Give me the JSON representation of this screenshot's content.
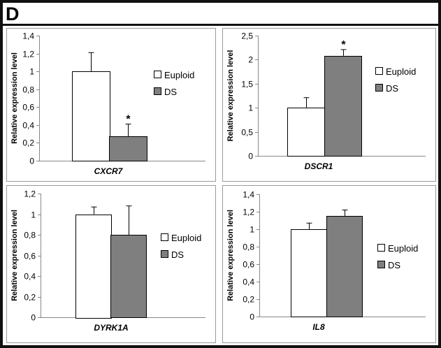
{
  "figure": {
    "panel_letter": "D"
  },
  "colors": {
    "euploid": "#ffffff",
    "ds": "#7f7f7f",
    "frame": "#111111",
    "panel_border": "#9a9a9a"
  },
  "legend": {
    "placement": "right",
    "items": [
      "Euploid",
      "DS"
    ]
  },
  "chart_data": [
    {
      "type": "bar",
      "categories": [
        "CXCR7"
      ],
      "ylabel": "Relative expression level",
      "ylim": [
        0,
        1.4
      ],
      "yticks": [
        "0",
        "0,2",
        "0,4",
        "0,6",
        "0,8",
        "1",
        "1,2",
        "1,4"
      ],
      "series": [
        {
          "name": "Euploid",
          "values": [
            1.0
          ],
          "error": [
            0.21
          ],
          "significant": [
            false
          ]
        },
        {
          "name": "DS",
          "values": [
            0.27
          ],
          "error": [
            0.14
          ],
          "significant": [
            true
          ]
        }
      ],
      "annotation": "*",
      "grid": false
    },
    {
      "type": "bar",
      "categories": [
        "DSCR1"
      ],
      "ylabel": "Relative expression level",
      "ylim": [
        0,
        2.5
      ],
      "yticks": [
        "0",
        "0,5",
        "1",
        "1,5",
        "2",
        "2,5"
      ],
      "series": [
        {
          "name": "Euploid",
          "values": [
            1.0
          ],
          "error": [
            0.21
          ],
          "significant": [
            false
          ]
        },
        {
          "name": "DS",
          "values": [
            2.08
          ],
          "error": [
            0.13
          ],
          "significant": [
            true
          ]
        }
      ],
      "annotation": "*",
      "grid": false
    },
    {
      "type": "bar",
      "categories": [
        "DYRK1A"
      ],
      "ylabel": "Relative expression level",
      "ylim": [
        0,
        1.2
      ],
      "yticks": [
        "0",
        "0,2",
        "0,4",
        "0,6",
        "0,8",
        "1",
        "1,2"
      ],
      "series": [
        {
          "name": "Euploid",
          "values": [
            1.0
          ],
          "error": [
            0.07
          ],
          "significant": [
            false
          ]
        },
        {
          "name": "DS",
          "values": [
            0.8
          ],
          "error": [
            0.28
          ],
          "significant": [
            false
          ]
        }
      ],
      "annotation": "",
      "grid": false
    },
    {
      "type": "bar",
      "categories": [
        "IL8"
      ],
      "ylabel": "Relative expression level",
      "ylim": [
        0,
        1.4
      ],
      "yticks": [
        "0",
        "0,2",
        "0,4",
        "0,6",
        "0,8",
        "1",
        "1,2",
        "1,4"
      ],
      "series": [
        {
          "name": "Euploid",
          "values": [
            1.0
          ],
          "error": [
            0.07
          ],
          "significant": [
            false
          ]
        },
        {
          "name": "DS",
          "values": [
            1.15
          ],
          "error": [
            0.07
          ],
          "significant": [
            false
          ]
        }
      ],
      "annotation": "",
      "grid": false
    }
  ]
}
